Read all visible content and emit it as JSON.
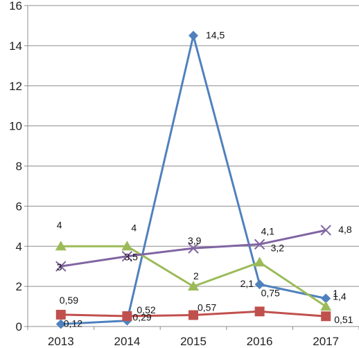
{
  "chart_data": {
    "type": "line",
    "categories": [
      "2013",
      "2014",
      "2015",
      "2016",
      "2017"
    ],
    "ylim": [
      0,
      16
    ],
    "yticks": [
      "0",
      "2",
      "4",
      "6",
      "8",
      "10",
      "12",
      "14",
      "16"
    ],
    "grid": true,
    "legend": "none",
    "series": [
      {
        "values": [
          0.12,
          0.29,
          14.5,
          2.1,
          1.4
        ],
        "labels": [
          "0,12",
          "0,29",
          "14,5",
          "2,1",
          "1,4"
        ],
        "color": "#4F81BD",
        "marker": "diamond"
      },
      {
        "values": [
          0.59,
          0.52,
          0.57,
          0.75,
          0.51
        ],
        "labels": [
          "0,59",
          "0,52",
          "0,57",
          "0,75",
          "0,51"
        ],
        "color": "#C0504D",
        "marker": "square"
      },
      {
        "values": [
          4,
          4,
          2,
          3.2,
          1
        ],
        "labels": [
          "4",
          "4",
          "2",
          "3,2",
          "1"
        ],
        "color": "#9BBB59",
        "marker": "triangle"
      },
      {
        "values": [
          3,
          3.5,
          3.9,
          4.1,
          4.8
        ],
        "labels": [
          "3",
          "3,5",
          "3,9",
          "4,1",
          "4,8"
        ],
        "color": "#8064A2",
        "marker": "x"
      }
    ]
  }
}
